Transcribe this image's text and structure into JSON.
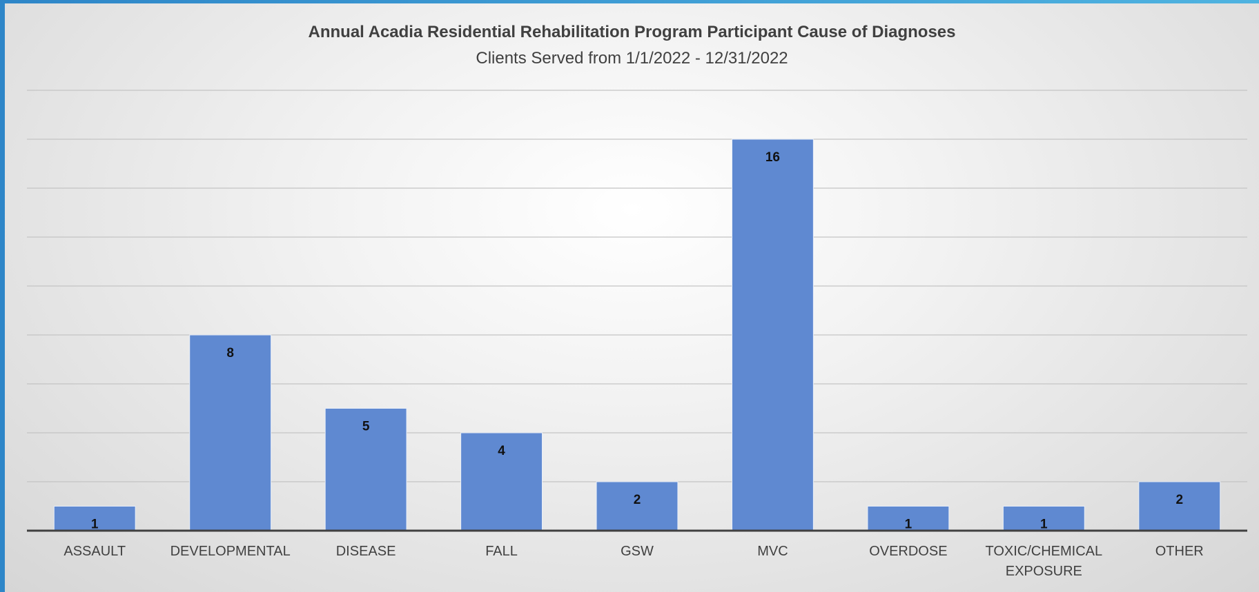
{
  "chart_data": {
    "type": "bar",
    "title": "Annual Acadia Residential Rehabilitation Program Participant Cause of Diagnoses",
    "subtitle": "Clients Served from 1/1/2022 - 12/31/2022",
    "categories": [
      "ASSAULT",
      "DEVELOPMENTAL",
      "DISEASE",
      "FALL",
      "GSW",
      "MVC",
      "OVERDOSE",
      "TOXIC/CHEMICAL EXPOSURE",
      "OTHER"
    ],
    "values": [
      1,
      8,
      5,
      4,
      2,
      16,
      1,
      1,
      2
    ],
    "color": "#5f89d1",
    "ylim": [
      0,
      18
    ],
    "yticks": [
      0,
      2,
      4,
      6,
      8,
      10,
      12,
      14,
      16,
      18
    ],
    "grid": true
  }
}
